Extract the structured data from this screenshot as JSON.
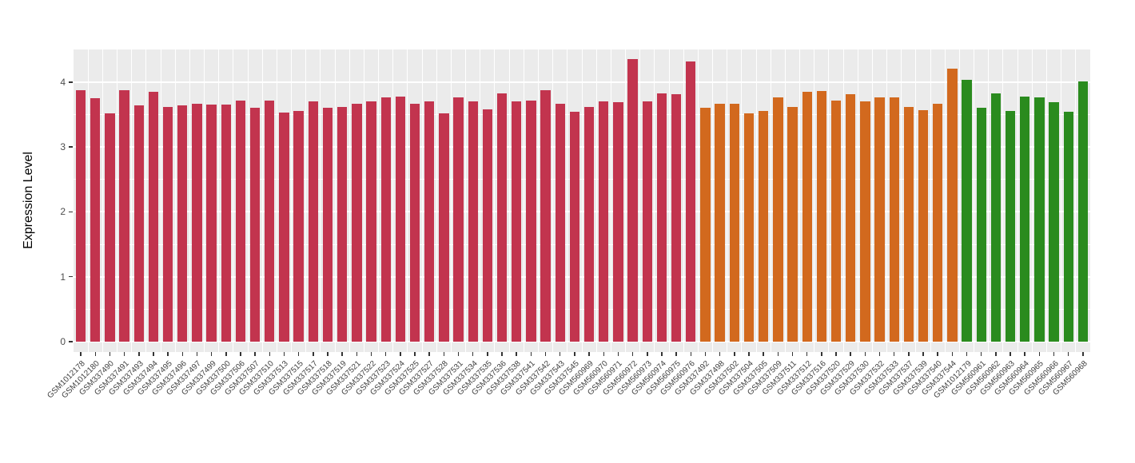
{
  "chart_data": {
    "type": "bar",
    "title": "",
    "xlabel": "",
    "ylabel": "Expression Level",
    "ylim": [
      0,
      4.5
    ],
    "yticks": [
      0,
      1,
      2,
      3,
      4
    ],
    "y_minor_ticks": [
      0.5,
      1.5,
      2.5,
      3.5
    ],
    "legend": "none",
    "grid": {
      "panel_bg": "#EBEBEB",
      "major_color": "#FFFFFF",
      "minor_color": "#FFFFFF",
      "vertical_separators": true
    },
    "palette": {
      "red": "#C2344E",
      "orange": "#D2691E",
      "green": "#2A8B1E"
    },
    "bars": [
      {
        "label": "GSM1012178",
        "value": 3.88,
        "group": "red"
      },
      {
        "label": "GSM1012180",
        "value": 3.75,
        "group": "red"
      },
      {
        "label": "GSM337490",
        "value": 3.52,
        "group": "red"
      },
      {
        "label": "GSM337491",
        "value": 3.88,
        "group": "red"
      },
      {
        "label": "GSM337493",
        "value": 3.64,
        "group": "red"
      },
      {
        "label": "GSM337494",
        "value": 3.85,
        "group": "red"
      },
      {
        "label": "GSM337495",
        "value": 3.62,
        "group": "red"
      },
      {
        "label": "GSM337496",
        "value": 3.64,
        "group": "red"
      },
      {
        "label": "GSM337497",
        "value": 3.67,
        "group": "red"
      },
      {
        "label": "GSM337499",
        "value": 3.65,
        "group": "red"
      },
      {
        "label": "GSM337500",
        "value": 3.65,
        "group": "red"
      },
      {
        "label": "GSM337506",
        "value": 3.71,
        "group": "red"
      },
      {
        "label": "GSM337507",
        "value": 3.6,
        "group": "red"
      },
      {
        "label": "GSM337510",
        "value": 3.72,
        "group": "red"
      },
      {
        "label": "GSM337513",
        "value": 3.53,
        "group": "red"
      },
      {
        "label": "GSM337515",
        "value": 3.56,
        "group": "red"
      },
      {
        "label": "GSM337517",
        "value": 3.7,
        "group": "red"
      },
      {
        "label": "GSM337518",
        "value": 3.61,
        "group": "red"
      },
      {
        "label": "GSM337519",
        "value": 3.62,
        "group": "red"
      },
      {
        "label": "GSM337521",
        "value": 3.66,
        "group": "red"
      },
      {
        "label": "GSM337522",
        "value": 3.7,
        "group": "red"
      },
      {
        "label": "GSM337523",
        "value": 3.76,
        "group": "red"
      },
      {
        "label": "GSM337524",
        "value": 3.78,
        "group": "red"
      },
      {
        "label": "GSM337525",
        "value": 3.67,
        "group": "red"
      },
      {
        "label": "GSM337527",
        "value": 3.7,
        "group": "red"
      },
      {
        "label": "GSM337528",
        "value": 3.52,
        "group": "red"
      },
      {
        "label": "GSM337531",
        "value": 3.77,
        "group": "red"
      },
      {
        "label": "GSM337534",
        "value": 3.7,
        "group": "red"
      },
      {
        "label": "GSM337535",
        "value": 3.58,
        "group": "red"
      },
      {
        "label": "GSM337536",
        "value": 3.82,
        "group": "red"
      },
      {
        "label": "GSM337538",
        "value": 3.7,
        "group": "red"
      },
      {
        "label": "GSM337541",
        "value": 3.72,
        "group": "red"
      },
      {
        "label": "GSM337542",
        "value": 3.88,
        "group": "red"
      },
      {
        "label": "GSM337543",
        "value": 3.67,
        "group": "red"
      },
      {
        "label": "GSM337545",
        "value": 3.54,
        "group": "red"
      },
      {
        "label": "GSM560969",
        "value": 3.62,
        "group": "red"
      },
      {
        "label": "GSM560970",
        "value": 3.7,
        "group": "red"
      },
      {
        "label": "GSM560971",
        "value": 3.69,
        "group": "red"
      },
      {
        "label": "GSM560972",
        "value": 4.36,
        "group": "red"
      },
      {
        "label": "GSM560973",
        "value": 3.7,
        "group": "red"
      },
      {
        "label": "GSM560974",
        "value": 3.82,
        "group": "red"
      },
      {
        "label": "GSM560975",
        "value": 3.81,
        "group": "red"
      },
      {
        "label": "GSM560976",
        "value": 4.32,
        "group": "red"
      },
      {
        "label": "GSM337492",
        "value": 3.61,
        "group": "orange"
      },
      {
        "label": "GSM337498",
        "value": 3.67,
        "group": "orange"
      },
      {
        "label": "GSM337502",
        "value": 3.66,
        "group": "orange"
      },
      {
        "label": "GSM337504",
        "value": 3.52,
        "group": "orange"
      },
      {
        "label": "GSM337505",
        "value": 3.56,
        "group": "orange"
      },
      {
        "label": "GSM337509",
        "value": 3.77,
        "group": "orange"
      },
      {
        "label": "GSM337511",
        "value": 3.62,
        "group": "orange"
      },
      {
        "label": "GSM337512",
        "value": 3.85,
        "group": "orange"
      },
      {
        "label": "GSM337516",
        "value": 3.86,
        "group": "orange"
      },
      {
        "label": "GSM337520",
        "value": 3.72,
        "group": "orange"
      },
      {
        "label": "GSM337529",
        "value": 3.81,
        "group": "orange"
      },
      {
        "label": "GSM337530",
        "value": 3.7,
        "group": "orange"
      },
      {
        "label": "GSM337532",
        "value": 3.77,
        "group": "orange"
      },
      {
        "label": "GSM337533",
        "value": 3.77,
        "group": "orange"
      },
      {
        "label": "GSM337537",
        "value": 3.62,
        "group": "orange"
      },
      {
        "label": "GSM337539",
        "value": 3.57,
        "group": "orange"
      },
      {
        "label": "GSM337540",
        "value": 3.66,
        "group": "orange"
      },
      {
        "label": "GSM337544",
        "value": 4.21,
        "group": "orange"
      },
      {
        "label": "GSM1012179",
        "value": 4.03,
        "group": "green"
      },
      {
        "label": "GSM560961",
        "value": 3.6,
        "group": "green"
      },
      {
        "label": "GSM560962",
        "value": 3.83,
        "group": "green"
      },
      {
        "label": "GSM560963",
        "value": 3.56,
        "group": "green"
      },
      {
        "label": "GSM560964",
        "value": 3.78,
        "group": "green"
      },
      {
        "label": "GSM560965",
        "value": 3.77,
        "group": "green"
      },
      {
        "label": "GSM560966",
        "value": 3.69,
        "group": "green"
      },
      {
        "label": "GSM560967",
        "value": 3.54,
        "group": "green"
      },
      {
        "label": "GSM560968",
        "value": 4.01,
        "group": "green"
      }
    ]
  }
}
